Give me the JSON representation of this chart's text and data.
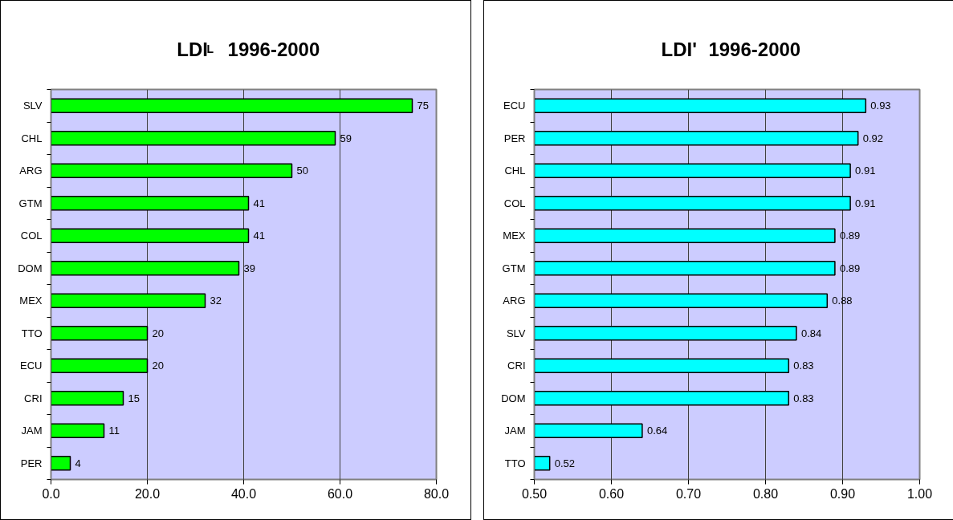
{
  "chart_data": [
    {
      "type": "bar",
      "orientation": "horizontal",
      "title": "LDI$_{L}$   1996-2000",
      "categories": [
        "SLV",
        "CHL",
        "ARG",
        "GTM",
        "COL",
        "DOM",
        "MEX",
        "TTO",
        "ECU",
        "CRI",
        "JAM",
        "PER"
      ],
      "values": [
        75,
        59,
        50,
        41,
        41,
        39,
        32,
        20,
        20,
        15,
        11,
        4
      ],
      "color": "#00ff00",
      "xlim": [
        0,
        80
      ],
      "xticks": [
        {
          "value": 0,
          "label": "0.0"
        },
        {
          "value": 20,
          "label": "20.0"
        },
        {
          "value": 40,
          "label": "40.0"
        },
        {
          "value": 60,
          "label": "60.0"
        },
        {
          "value": 80,
          "label": "80.0"
        }
      ],
      "grid": "x",
      "data_labels": true
    },
    {
      "type": "bar",
      "orientation": "horizontal",
      "title": "LDI'   1996-2000",
      "categories": [
        "ECU",
        "PER",
        "CHL",
        "COL",
        "MEX",
        "GTM",
        "ARG",
        "SLV",
        "CRI",
        "DOM",
        "JAM",
        "TTO"
      ],
      "values": [
        0.93,
        0.92,
        0.91,
        0.91,
        0.89,
        0.89,
        0.88,
        0.84,
        0.83,
        0.83,
        0.64,
        0.52
      ],
      "color": "#00ffff",
      "xlim": [
        0.5,
        1.0
      ],
      "xticks": [
        {
          "value": 0.5,
          "label": "0.50"
        },
        {
          "value": 0.6,
          "label": "0.60"
        },
        {
          "value": 0.7,
          "label": "0.70"
        },
        {
          "value": 0.8,
          "label": "0.80"
        },
        {
          "value": 0.9,
          "label": "0.90"
        },
        {
          "value": 1.0,
          "label": "1.00"
        }
      ],
      "grid": "x",
      "data_labels": true
    }
  ]
}
